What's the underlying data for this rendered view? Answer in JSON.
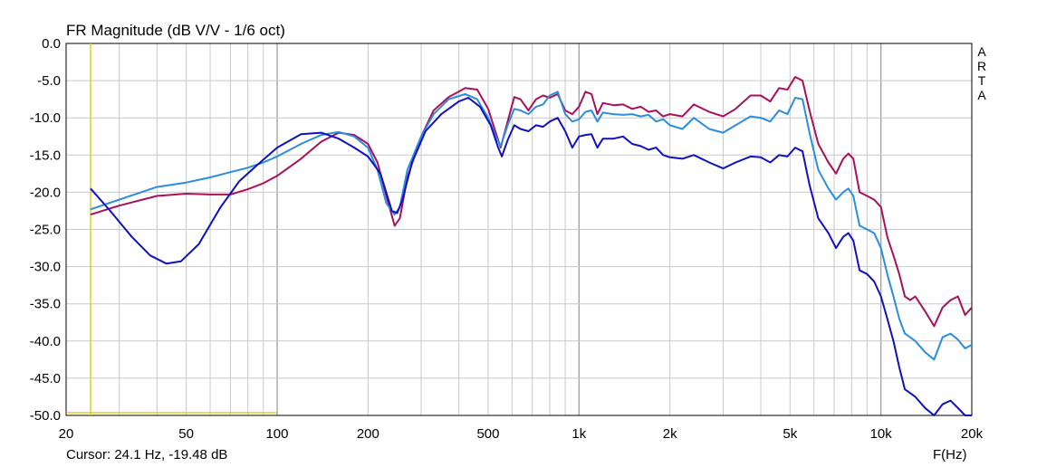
{
  "chart_data": {
    "type": "line",
    "title": "FR Magnitude (dB V/V - 1/6 oct)",
    "xlabel": "F(Hz)",
    "ylabel": "",
    "x_scale": "log",
    "xlim": [
      20,
      20000
    ],
    "ylim": [
      -50,
      0
    ],
    "grid": true,
    "x_ticks": [
      {
        "value": 20,
        "label": "20"
      },
      {
        "value": 50,
        "label": "50"
      },
      {
        "value": 100,
        "label": "100"
      },
      {
        "value": 200,
        "label": "200"
      },
      {
        "value": 500,
        "label": "500"
      },
      {
        "value": 1000,
        "label": "1k"
      },
      {
        "value": 2000,
        "label": "2k"
      },
      {
        "value": 5000,
        "label": "5k"
      },
      {
        "value": 10000,
        "label": "10k"
      },
      {
        "value": 20000,
        "label": "20k"
      }
    ],
    "y_ticks": [
      {
        "value": 0,
        "label": "0.0"
      },
      {
        "value": -5,
        "label": "-5.0"
      },
      {
        "value": -10,
        "label": "-10.0"
      },
      {
        "value": -15,
        "label": "-15.0"
      },
      {
        "value": -20,
        "label": "-20.0"
      },
      {
        "value": -25,
        "label": "-25.0"
      },
      {
        "value": -30,
        "label": "-30.0"
      },
      {
        "value": -35,
        "label": "-35.0"
      },
      {
        "value": -40,
        "label": "-40.0"
      },
      {
        "value": -45,
        "label": "-45.0"
      },
      {
        "value": -50,
        "label": "-50.0"
      }
    ],
    "series": [
      {
        "color": "#a8105a",
        "points": [
          [
            24.1,
            -23.0
          ],
          [
            30,
            -21.8
          ],
          [
            40,
            -20.5
          ],
          [
            50,
            -20.2
          ],
          [
            60,
            -20.3
          ],
          [
            70,
            -20.3
          ],
          [
            80,
            -19.6
          ],
          [
            90,
            -18.8
          ],
          [
            100,
            -17.8
          ],
          [
            120,
            -15.5
          ],
          [
            140,
            -13.2
          ],
          [
            160,
            -12.0
          ],
          [
            180,
            -12.3
          ],
          [
            200,
            -13.5
          ],
          [
            215,
            -16.0
          ],
          [
            230,
            -20.5
          ],
          [
            245,
            -24.5
          ],
          [
            255,
            -23.5
          ],
          [
            270,
            -18.0
          ],
          [
            300,
            -12.5
          ],
          [
            330,
            -9.0
          ],
          [
            370,
            -7.2
          ],
          [
            420,
            -6.0
          ],
          [
            460,
            -6.2
          ],
          [
            500,
            -8.8
          ],
          [
            530,
            -12.0
          ],
          [
            550,
            -14.0
          ],
          [
            580,
            -10.5
          ],
          [
            610,
            -7.2
          ],
          [
            640,
            -7.5
          ],
          [
            680,
            -9.0
          ],
          [
            720,
            -7.5
          ],
          [
            760,
            -7.0
          ],
          [
            800,
            -7.3
          ],
          [
            850,
            -6.8
          ],
          [
            900,
            -9.0
          ],
          [
            950,
            -9.5
          ],
          [
            1000,
            -8.5
          ],
          [
            1050,
            -6.5
          ],
          [
            1100,
            -6.8
          ],
          [
            1150,
            -9.5
          ],
          [
            1200,
            -8.0
          ],
          [
            1300,
            -8.3
          ],
          [
            1400,
            -8.2
          ],
          [
            1500,
            -8.8
          ],
          [
            1600,
            -8.5
          ],
          [
            1700,
            -9.2
          ],
          [
            1800,
            -9.0
          ],
          [
            1900,
            -9.8
          ],
          [
            2000,
            -9.5
          ],
          [
            2200,
            -9.8
          ],
          [
            2400,
            -8.2
          ],
          [
            2700,
            -9.2
          ],
          [
            3000,
            -9.8
          ],
          [
            3300,
            -8.8
          ],
          [
            3700,
            -7.0
          ],
          [
            4000,
            -7.0
          ],
          [
            4300,
            -7.8
          ],
          [
            4600,
            -6.0
          ],
          [
            4900,
            -6.2
          ],
          [
            5200,
            -4.5
          ],
          [
            5500,
            -5.0
          ],
          [
            5800,
            -9.0
          ],
          [
            6200,
            -13.5
          ],
          [
            6700,
            -16.0
          ],
          [
            7100,
            -17.5
          ],
          [
            7500,
            -15.5
          ],
          [
            7800,
            -14.8
          ],
          [
            8100,
            -15.5
          ],
          [
            8500,
            -20.0
          ],
          [
            9000,
            -20.5
          ],
          [
            9500,
            -21.0
          ],
          [
            10000,
            -22.0
          ],
          [
            10500,
            -26.0
          ],
          [
            11000,
            -28.5
          ],
          [
            11500,
            -31.0
          ],
          [
            12000,
            -34.0
          ],
          [
            12500,
            -34.5
          ],
          [
            13000,
            -34.0
          ],
          [
            14000,
            -36.0
          ],
          [
            15000,
            -38.0
          ],
          [
            16000,
            -35.5
          ],
          [
            17000,
            -34.5
          ],
          [
            18000,
            -34.0
          ],
          [
            19000,
            -36.5
          ],
          [
            20000,
            -35.5
          ]
        ]
      },
      {
        "color": "#2a8de0",
        "points": [
          [
            24.1,
            -22.3
          ],
          [
            30,
            -21.0
          ],
          [
            40,
            -19.3
          ],
          [
            50,
            -18.7
          ],
          [
            60,
            -18.0
          ],
          [
            70,
            -17.3
          ],
          [
            80,
            -16.7
          ],
          [
            90,
            -16.0
          ],
          [
            100,
            -15.2
          ],
          [
            120,
            -13.5
          ],
          [
            140,
            -12.3
          ],
          [
            160,
            -11.9
          ],
          [
            180,
            -12.5
          ],
          [
            200,
            -14.0
          ],
          [
            215,
            -17.0
          ],
          [
            230,
            -21.5
          ],
          [
            245,
            -23.0
          ],
          [
            255,
            -22.0
          ],
          [
            270,
            -17.0
          ],
          [
            300,
            -12.5
          ],
          [
            330,
            -9.5
          ],
          [
            370,
            -7.5
          ],
          [
            420,
            -6.8
          ],
          [
            460,
            -7.5
          ],
          [
            500,
            -10.0
          ],
          [
            530,
            -12.5
          ],
          [
            550,
            -13.8
          ],
          [
            580,
            -11.0
          ],
          [
            610,
            -8.8
          ],
          [
            640,
            -9.0
          ],
          [
            680,
            -9.5
          ],
          [
            720,
            -8.5
          ],
          [
            760,
            -8.2
          ],
          [
            800,
            -7.0
          ],
          [
            850,
            -6.5
          ],
          [
            900,
            -9.5
          ],
          [
            950,
            -10.5
          ],
          [
            1000,
            -10.2
          ],
          [
            1050,
            -9.2
          ],
          [
            1100,
            -9.0
          ],
          [
            1150,
            -10.5
          ],
          [
            1200,
            -9.3
          ],
          [
            1300,
            -9.5
          ],
          [
            1400,
            -9.6
          ],
          [
            1500,
            -9.5
          ],
          [
            1600,
            -9.8
          ],
          [
            1700,
            -9.6
          ],
          [
            1800,
            -10.5
          ],
          [
            1900,
            -10.2
          ],
          [
            2000,
            -11.0
          ],
          [
            2200,
            -11.5
          ],
          [
            2400,
            -10.0
          ],
          [
            2700,
            -11.5
          ],
          [
            3000,
            -12.0
          ],
          [
            3300,
            -11.0
          ],
          [
            3700,
            -9.8
          ],
          [
            4000,
            -10.0
          ],
          [
            4300,
            -10.5
          ],
          [
            4600,
            -9.0
          ],
          [
            4900,
            -9.5
          ],
          [
            5200,
            -7.3
          ],
          [
            5500,
            -7.5
          ],
          [
            5800,
            -12.0
          ],
          [
            6200,
            -17.0
          ],
          [
            6700,
            -19.5
          ],
          [
            7100,
            -21.0
          ],
          [
            7500,
            -20.0
          ],
          [
            7800,
            -19.5
          ],
          [
            8100,
            -20.5
          ],
          [
            8500,
            -24.5
          ],
          [
            9000,
            -25.0
          ],
          [
            9500,
            -25.5
          ],
          [
            10000,
            -27.5
          ],
          [
            10500,
            -31.0
          ],
          [
            11000,
            -34.0
          ],
          [
            11500,
            -37.0
          ],
          [
            12000,
            -39.0
          ],
          [
            12500,
            -39.5
          ],
          [
            13000,
            -40.0
          ],
          [
            14000,
            -41.5
          ],
          [
            15000,
            -42.5
          ],
          [
            16000,
            -39.5
          ],
          [
            17000,
            -39.0
          ],
          [
            18000,
            -39.8
          ],
          [
            19000,
            -41.0
          ],
          [
            20000,
            -40.5
          ]
        ]
      },
      {
        "color": "#1010c0",
        "points": [
          [
            24.1,
            -19.5
          ],
          [
            28,
            -22.5
          ],
          [
            33,
            -26.0
          ],
          [
            38,
            -28.5
          ],
          [
            43,
            -29.6
          ],
          [
            48,
            -29.3
          ],
          [
            55,
            -27.0
          ],
          [
            65,
            -22.0
          ],
          [
            75,
            -18.5
          ],
          [
            85,
            -16.5
          ],
          [
            100,
            -14.0
          ],
          [
            120,
            -12.2
          ],
          [
            140,
            -12.0
          ],
          [
            160,
            -12.8
          ],
          [
            180,
            -14.0
          ],
          [
            200,
            -15.2
          ],
          [
            220,
            -17.5
          ],
          [
            240,
            -22.5
          ],
          [
            250,
            -22.8
          ],
          [
            260,
            -21.0
          ],
          [
            280,
            -16.0
          ],
          [
            310,
            -11.8
          ],
          [
            350,
            -9.5
          ],
          [
            400,
            -7.8
          ],
          [
            430,
            -7.3
          ],
          [
            470,
            -8.5
          ],
          [
            510,
            -11.0
          ],
          [
            540,
            -14.0
          ],
          [
            555,
            -15.2
          ],
          [
            580,
            -13.0
          ],
          [
            610,
            -11.0
          ],
          [
            640,
            -11.5
          ],
          [
            680,
            -11.8
          ],
          [
            720,
            -11.0
          ],
          [
            760,
            -11.2
          ],
          [
            800,
            -10.5
          ],
          [
            850,
            -10.0
          ],
          [
            900,
            -11.8
          ],
          [
            950,
            -14.0
          ],
          [
            1000,
            -12.5
          ],
          [
            1050,
            -12.3
          ],
          [
            1100,
            -12.2
          ],
          [
            1150,
            -14.0
          ],
          [
            1200,
            -12.8
          ],
          [
            1300,
            -12.8
          ],
          [
            1400,
            -12.5
          ],
          [
            1500,
            -13.5
          ],
          [
            1600,
            -13.8
          ],
          [
            1700,
            -14.3
          ],
          [
            1800,
            -14.0
          ],
          [
            1900,
            -15.0
          ],
          [
            2000,
            -15.3
          ],
          [
            2200,
            -15.5
          ],
          [
            2400,
            -15.0
          ],
          [
            2700,
            -16.0
          ],
          [
            3000,
            -16.8
          ],
          [
            3300,
            -16.0
          ],
          [
            3700,
            -15.2
          ],
          [
            4000,
            -15.3
          ],
          [
            4300,
            -16.0
          ],
          [
            4600,
            -15.0
          ],
          [
            4900,
            -15.2
          ],
          [
            5200,
            -14.0
          ],
          [
            5500,
            -14.5
          ],
          [
            5800,
            -19.0
          ],
          [
            6200,
            -23.5
          ],
          [
            6700,
            -25.5
          ],
          [
            7100,
            -27.5
          ],
          [
            7500,
            -26.0
          ],
          [
            7800,
            -25.5
          ],
          [
            8100,
            -26.5
          ],
          [
            8500,
            -30.5
          ],
          [
            9000,
            -31.0
          ],
          [
            9500,
            -32.0
          ],
          [
            10000,
            -34.0
          ],
          [
            10500,
            -37.0
          ],
          [
            11000,
            -40.0
          ],
          [
            11500,
            -43.5
          ],
          [
            12000,
            -46.5
          ],
          [
            12500,
            -47.0
          ],
          [
            13000,
            -47.5
          ],
          [
            14000,
            -49.0
          ],
          [
            15000,
            -50.0
          ],
          [
            16000,
            -48.5
          ],
          [
            17000,
            -48.0
          ],
          [
            18000,
            -49.0
          ],
          [
            19000,
            -50.0
          ],
          [
            20000,
            -50.0
          ]
        ]
      }
    ],
    "cursor": {
      "x": 24.1,
      "color": "#d8c800"
    }
  },
  "ui": {
    "cursor_readout": "Cursor: 24.1 Hz, -19.48 dB",
    "brand_letters": [
      "A",
      "R",
      "T",
      "A"
    ],
    "grid_color": "#c8c8c8",
    "major_grid_color": "#a0a0a0"
  }
}
